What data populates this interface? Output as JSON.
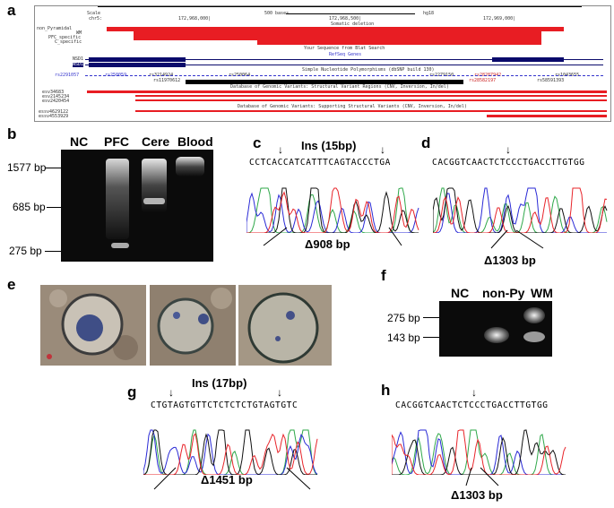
{
  "panel_labels": {
    "a": "a",
    "b": "b",
    "c": "c",
    "d": "d",
    "e": "e",
    "f": "f",
    "g": "g",
    "h": "h"
  },
  "browser": {
    "scale_label": "Scale",
    "chrom_label": "chr5:",
    "scale_text": "500 bases",
    "assembly": "hg18",
    "pos1": "172,968,000|",
    "pos2": "172,968,500|",
    "pos3": "172,969,000|",
    "somatic_deletion": "Somatic deletion",
    "tracks": [
      "non_Pyramidal",
      "WM",
      "PFC_specific",
      "C_specific"
    ],
    "blat_title": "Your Sequence from Blat Search",
    "refseq_title": "RefSeq Genes",
    "gene1": "NSD1",
    "gene2": "NSD1",
    "snp_title": "Simple Nucleotide Polymorphisms (dbSNP build 130)",
    "snps_row1": [
      "rs2291057",
      "rs250059",
      "rs3214924",
      "rs250064",
      "rs2279150",
      "rs28287942",
      "rs1043655"
    ],
    "snps_row2": [
      "rs11970612",
      "rs28582197",
      "rs58591393"
    ],
    "dgv_title1": "Database of Genomic Variants: Structural Variant Regions (CNV, Inversion, In/del)",
    "dgv_title2": "Database of Genomic Variants: Supporting Structural Variants (CNV, Inversion, In/del)",
    "variants1": [
      "esv34683",
      "esv2145234",
      "esv2420454"
    ],
    "variants2": [
      "essv4629122",
      "essv4553929"
    ]
  },
  "gel_b": {
    "lanes": [
      "NC",
      "PFC",
      "Cere",
      "Blood"
    ],
    "markers": [
      "1577 bp",
      "685 bp",
      "275 bp"
    ]
  },
  "panel_c": {
    "seq": "CCTCACCATCATTTCAGTACCCTGA",
    "ins": "Ins (15bp)",
    "del": "Δ908 bp"
  },
  "panel_d": {
    "seq": "CACGGTCAACTCTCCCTGACCTTGTGG",
    "del": "Δ1303 bp"
  },
  "gel_f": {
    "lanes": [
      "NC",
      "non-Py",
      "WM"
    ],
    "markers": [
      "275 bp",
      "143 bp"
    ]
  },
  "panel_g": {
    "seq": "CTGTAGTGTTCTCTCTCTGTAGTGTC",
    "ins": "Ins (17bp)",
    "del": "Δ1451 bp"
  },
  "panel_h": {
    "seq": "CACGGTCAACTCTCCCTGACCTTGTGG",
    "del": "Δ1303 bp"
  },
  "colors": {
    "trace_a": "#2fa84a",
    "trace_c": "#2a2ad6",
    "trace_g": "#111111",
    "trace_t": "#e8242a",
    "track_red": "#e81d23",
    "gene_blue": "#0a0a6b"
  }
}
